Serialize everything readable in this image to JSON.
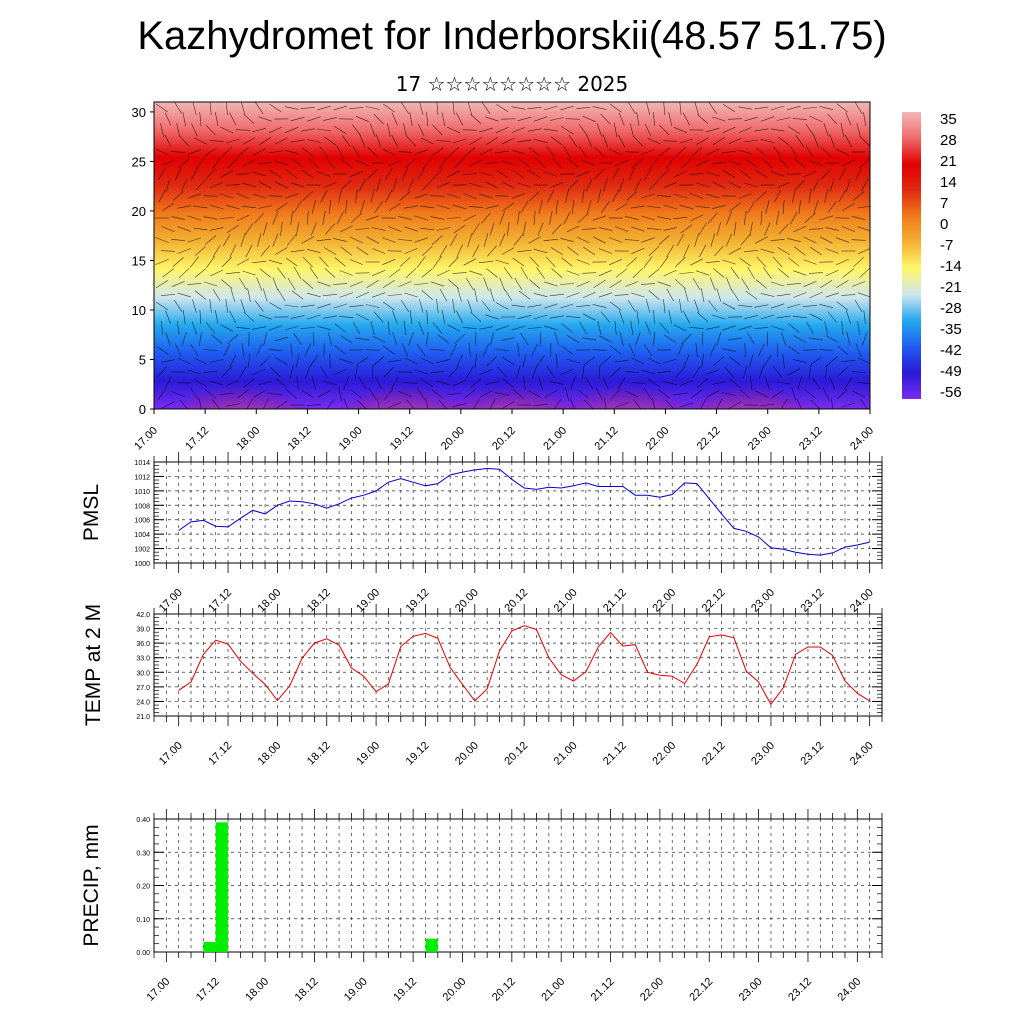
{
  "header": {
    "title": "Kazhydromet for Inderborskii(48.57 51.75)",
    "subtitle": "17 ☆☆☆☆☆☆☆☆ 2025"
  },
  "colors": {
    "pmsl_line": "#0000cc",
    "temp_line": "#dd0000",
    "precip_bar": "#00ee00",
    "grid": "#000000"
  },
  "time_labels": [
    "17.00",
    "17.12",
    "18.00",
    "18.12",
    "19.00",
    "19.12",
    "20.00",
    "20.12",
    "21.00",
    "21.12",
    "22.00",
    "22.12",
    "23.00",
    "23.12",
    "24.00"
  ],
  "chart_data": [
    {
      "type": "heatmap",
      "title": "Kazhydromet for Inderborskii(48.57 51.75)",
      "subtitle": "17 ☆☆☆☆☆☆☆☆ 2025",
      "y_ticks": [
        "0",
        "5",
        "10",
        "15",
        "20",
        "25",
        "30"
      ],
      "ylim": [
        0,
        31
      ],
      "colorbar_labels": [
        "35",
        "28",
        "21",
        "14",
        "7",
        "0",
        "-7",
        "-14",
        "-21",
        "-28",
        "-35",
        "-42",
        "-49",
        "-56"
      ],
      "colorbar_stops": [
        "#7a2cf0",
        "#2a1ad8",
        "#1f5cf0",
        "#23a8ee",
        "#cfe6ee",
        "#fff66a",
        "#f3b233",
        "#f07b1c",
        "#e02a10",
        "#e10000",
        "#f06b6b",
        "#f3b6b6"
      ]
    },
    {
      "type": "line",
      "ylabel": "PMSL",
      "ylim": [
        1000,
        1014
      ],
      "y_ticks": [
        "1000",
        "1002",
        "1004",
        "1006",
        "1008",
        "1010",
        "1012",
        "1014"
      ],
      "x_hours": [
        0,
        3,
        6,
        9,
        12,
        15,
        18,
        21,
        24,
        27,
        30,
        33,
        36,
        39,
        42,
        45,
        48,
        51,
        54,
        57,
        60,
        63,
        66,
        69,
        72,
        75,
        78,
        81,
        84,
        87,
        90,
        93,
        96,
        99,
        102,
        105,
        108,
        111,
        114,
        117,
        120,
        123,
        126,
        129,
        132,
        135,
        138,
        141,
        144,
        147,
        150,
        153,
        156,
        159,
        162,
        165,
        168
      ],
      "values": [
        1004.5,
        1005.7,
        1005.9,
        1005.1,
        1005.0,
        1006.2,
        1007.3,
        1006.8,
        1008.0,
        1008.6,
        1008.5,
        1008.2,
        1007.6,
        1008.2,
        1009.0,
        1009.4,
        1010.0,
        1011.2,
        1011.7,
        1011.2,
        1010.7,
        1011.0,
        1012.2,
        1012.6,
        1012.9,
        1013.1,
        1013.0,
        1011.6,
        1010.4,
        1010.2,
        1010.5,
        1010.4,
        1010.7,
        1011.1,
        1010.6,
        1010.6,
        1010.6,
        1009.4,
        1009.4,
        1009.1,
        1009.5,
        1011.1,
        1011.0,
        1008.9,
        1006.8,
        1004.8,
        1004.4,
        1003.6,
        1002.1,
        1001.9,
        1001.5,
        1001.2,
        1001.1,
        1001.4,
        1002.2,
        1002.5,
        1002.9
      ]
    },
    {
      "type": "line",
      "ylabel": "TEMP at 2 M",
      "ylim": [
        21,
        42
      ],
      "y_ticks": [
        "21.0",
        "24.0",
        "27.0",
        "30.0",
        "33.0",
        "36.0",
        "39.0",
        "42.0"
      ],
      "x_hours": [
        0,
        3,
        6,
        9,
        12,
        15,
        18,
        21,
        24,
        27,
        30,
        33,
        36,
        39,
        42,
        45,
        48,
        51,
        54,
        57,
        60,
        63,
        66,
        69,
        72,
        75,
        78,
        81,
        84,
        87,
        90,
        93,
        96,
        99,
        102,
        105,
        108,
        111,
        114,
        117,
        120,
        123,
        126,
        129,
        132,
        135,
        138,
        141,
        144,
        147,
        150,
        153,
        156,
        159,
        162,
        165,
        168
      ],
      "values": [
        26.3,
        28.0,
        33.7,
        36.6,
        35.8,
        32.3,
        29.8,
        27.5,
        24.2,
        27.2,
        32.9,
        36.0,
        36.9,
        35.6,
        30.9,
        29.2,
        26.0,
        27.6,
        35.3,
        37.4,
        38.0,
        37.0,
        31.0,
        27.5,
        24.1,
        26.6,
        34.4,
        38.5,
        39.6,
        38.8,
        33.0,
        29.5,
        28.2,
        30.1,
        35.2,
        38.2,
        35.4,
        35.7,
        30.0,
        29.4,
        29.2,
        27.7,
        31.6,
        37.3,
        37.7,
        37.1,
        30.2,
        28.0,
        23.4,
        26.8,
        33.7,
        35.2,
        35.2,
        33.5,
        28.2,
        25.7,
        24.1
      ]
    },
    {
      "type": "bar",
      "ylabel": "PRECIP, mm",
      "ylim": [
        0,
        0.4
      ],
      "y_ticks": [
        "0.00",
        "0.10",
        "0.20",
        "0.30",
        "0.40"
      ],
      "bars": [
        {
          "start_hour": 9,
          "end_hour": 12,
          "value": 0.03
        },
        {
          "start_hour": 12,
          "end_hour": 15,
          "value": 0.39
        },
        {
          "start_hour": 63,
          "end_hour": 66,
          "value": 0.04
        }
      ]
    }
  ]
}
